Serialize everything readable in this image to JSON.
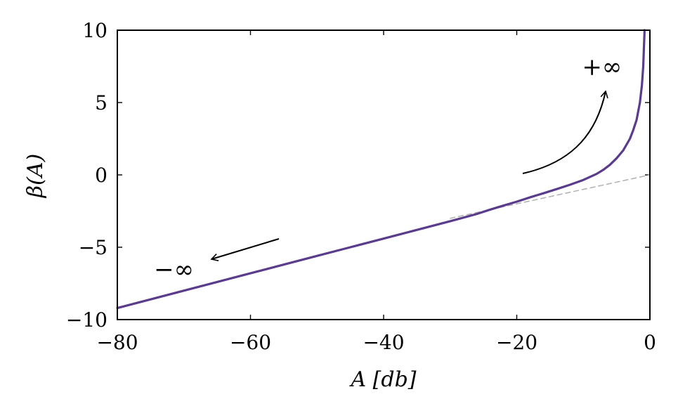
{
  "chart_data": {
    "type": "line",
    "title": "",
    "xlabel": "A [db]",
    "ylabel": "β(A)",
    "xlim": [
      -80,
      0
    ],
    "ylim": [
      -10,
      10
    ],
    "x_ticks": [
      -80,
      -60,
      -40,
      -20,
      0
    ],
    "y_ticks": [
      -10,
      -5,
      0,
      5,
      10
    ],
    "x_tick_labels": [
      "−80",
      "−60",
      "−40",
      "−20",
      "0"
    ],
    "y_tick_labels": [
      "−10",
      "−5",
      "0",
      "5",
      "10"
    ],
    "grid": false,
    "legend": "none",
    "series": [
      {
        "style": "solid",
        "color": "#5b3b8c",
        "x": [
          -80,
          -75,
          -70,
          -65,
          -60,
          -55,
          -50,
          -45,
          -40,
          -35,
          -30,
          -28,
          -26,
          -24,
          -22,
          -20,
          -18,
          -16,
          -14,
          -12,
          -10,
          -8,
          -7,
          -6,
          -5,
          -4,
          -3,
          -2.5,
          -2,
          -1.5,
          -1.2,
          -1.0,
          -0.8
        ],
        "y": [
          -9.2,
          -8.6,
          -8.0,
          -7.4,
          -6.8,
          -6.2,
          -5.6,
          -5.0,
          -4.4,
          -3.8,
          -3.2,
          -2.95,
          -2.7,
          -2.4,
          -2.12,
          -1.85,
          -1.55,
          -1.27,
          -0.98,
          -0.68,
          -0.35,
          0.07,
          0.35,
          0.7,
          1.15,
          1.7,
          2.5,
          3.1,
          3.8,
          5.0,
          6.2,
          7.5,
          10.0
        ]
      },
      {
        "style": "dashed",
        "color": "#b0b0b0",
        "x": [
          -30,
          0
        ],
        "y": [
          -3.0,
          0.0
        ]
      }
    ],
    "annotations": [
      {
        "text": "+∞",
        "x": -7.2,
        "y": 7.5
      },
      {
        "text": "−∞",
        "x": -71.5,
        "y": -6.5
      }
    ]
  }
}
